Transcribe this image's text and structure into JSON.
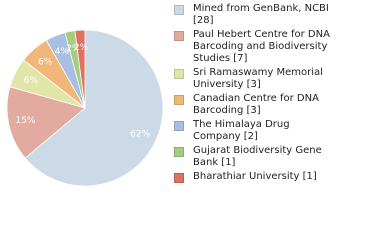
{
  "chart_data": {
    "type": "pie",
    "categories": [
      "Mined from GenBank, NCBI [28]",
      "Paul Hebert Centre for DNA Barcoding and Biodiversity Studies [7]",
      "Sri Ramaswamy Memorial University [3]",
      "Canadian Centre for DNA Barcoding [3]",
      "The Himalaya Drug Company [2]",
      "Gujarat Biodiversity Gene Bank [1]",
      "Bharathiar University [1]"
    ],
    "values": [
      62,
      15,
      6,
      6,
      4,
      2,
      2
    ],
    "value_labels": [
      "62%",
      "15%",
      "6%",
      "6%",
      "4%",
      "2%",
      "2%"
    ],
    "colors": [
      "#ccd9e6",
      "#e3aaa0",
      "#e0e6a8",
      "#f0b67a",
      "#a8bfe0",
      "#a6cc80",
      "#e07060"
    ],
    "legend": "right"
  }
}
